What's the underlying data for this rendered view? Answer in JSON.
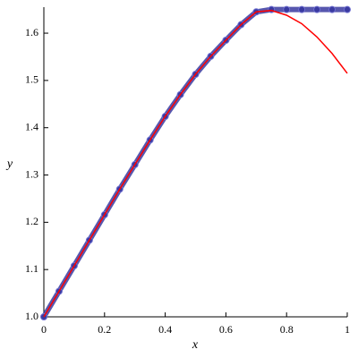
{
  "chart_data": {
    "type": "line",
    "x_label": "x",
    "y_label": "y",
    "x": [
      0,
      0.05,
      0.1,
      0.15,
      0.2,
      0.25,
      0.3,
      0.35,
      0.4,
      0.45,
      0.5,
      0.55,
      0.6,
      0.65,
      0.7,
      0.75,
      0.8,
      0.85,
      0.9,
      0.95,
      1
    ],
    "series": [
      {
        "color": "#3a3aa0",
        "style": "points",
        "values": [
          1.0,
          1.054,
          1.108,
          1.162,
          1.216,
          1.27,
          1.322,
          1.374,
          1.424,
          1.47,
          1.513,
          1.551,
          1.585,
          1.618,
          1.645,
          1.65,
          1.65,
          1.65,
          1.65,
          1.65,
          1.65
        ]
      },
      {
        "color": "#ff0000",
        "style": "line",
        "values": [
          1.0,
          1.054,
          1.108,
          1.162,
          1.216,
          1.27,
          1.322,
          1.374,
          1.424,
          1.47,
          1.513,
          1.551,
          1.585,
          1.618,
          1.645,
          1.648,
          1.638,
          1.62,
          1.592,
          1.557,
          1.515
        ]
      }
    ],
    "xlim": [
      0,
      1
    ],
    "ylim": [
      1,
      1.655
    ],
    "xticks": [
      0,
      0.2,
      0.4,
      0.6,
      0.8,
      1
    ],
    "yticks": [
      {
        "value": 1,
        "label": "1.0"
      },
      1.1,
      1.2,
      1.3,
      1.4,
      1.5,
      1.6
    ],
    "grid": false
  }
}
